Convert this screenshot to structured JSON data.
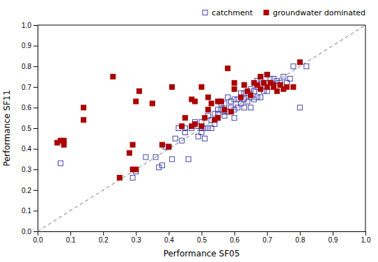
{
  "chart_data": {
    "type": "scatter",
    "xlabel": "Performance SF05",
    "ylabel": "Performance SF11",
    "xlim": [
      0.0,
      1.0
    ],
    "ylim": [
      0.0,
      1.0
    ],
    "xticks": [
      {
        "value": 0.0,
        "label": "0.0"
      },
      0.1,
      0.2,
      0.3,
      0.4,
      0.5,
      0.6,
      0.7,
      0.8,
      0.9,
      {
        "value": 1.0,
        "label": "1.0"
      }
    ],
    "yticks": [
      {
        "value": 0.0,
        "label": "0.0"
      },
      0.1,
      0.2,
      0.3,
      0.4,
      0.5,
      0.6,
      0.7,
      0.8,
      0.9,
      {
        "value": 1.0,
        "label": "1.0"
      }
    ],
    "grid": false,
    "legend": "upper right",
    "series": [
      {
        "name": "catchment",
        "type": "scatter",
        "color": "#4444aa",
        "marker": "open-square",
        "x": [
          0.07,
          0.29,
          0.3,
          0.33,
          0.36,
          0.37,
          0.38,
          0.39,
          0.4,
          0.41,
          0.42,
          0.43,
          0.44,
          0.45,
          0.45,
          0.46,
          0.47,
          0.48,
          0.49,
          0.49,
          0.5,
          0.5,
          0.5,
          0.51,
          0.51,
          0.52,
          0.52,
          0.53,
          0.53,
          0.54,
          0.54,
          0.55,
          0.55,
          0.55,
          0.56,
          0.56,
          0.57,
          0.57,
          0.57,
          0.58,
          0.58,
          0.59,
          0.59,
          0.6,
          0.6,
          0.6,
          0.61,
          0.61,
          0.62,
          0.62,
          0.63,
          0.63,
          0.63,
          0.64,
          0.64,
          0.65,
          0.65,
          0.65,
          0.66,
          0.66,
          0.67,
          0.67,
          0.67,
          0.68,
          0.68,
          0.68,
          0.69,
          0.69,
          0.7,
          0.7,
          0.7,
          0.71,
          0.71,
          0.72,
          0.72,
          0.73,
          0.74,
          0.75,
          0.76,
          0.77,
          0.78,
          0.8,
          0.82
        ],
        "values": [
          0.33,
          0.26,
          0.29,
          0.36,
          0.36,
          0.31,
          0.32,
          0.41,
          0.41,
          0.35,
          0.45,
          0.5,
          0.44,
          0.48,
          0.5,
          0.35,
          0.5,
          0.53,
          0.46,
          0.51,
          0.48,
          0.5,
          0.53,
          0.45,
          0.5,
          0.5,
          0.56,
          0.5,
          0.54,
          0.52,
          0.57,
          0.55,
          0.57,
          0.59,
          0.59,
          0.62,
          0.56,
          0.58,
          0.62,
          0.58,
          0.65,
          0.6,
          0.63,
          0.55,
          0.59,
          0.64,
          0.6,
          0.64,
          0.62,
          0.67,
          0.6,
          0.64,
          0.67,
          0.63,
          0.67,
          0.6,
          0.65,
          0.69,
          0.64,
          0.68,
          0.65,
          0.7,
          0.73,
          0.65,
          0.7,
          0.74,
          0.68,
          0.72,
          0.68,
          0.72,
          0.76,
          0.7,
          0.74,
          0.71,
          0.74,
          0.73,
          0.72,
          0.75,
          0.72,
          0.74,
          0.8,
          0.6,
          0.8
        ]
      },
      {
        "name": "groundwater dominated",
        "type": "scatter",
        "color": "#aa0000",
        "marker": "square",
        "x": [
          0.06,
          0.07,
          0.08,
          0.08,
          0.14,
          0.14,
          0.23,
          0.25,
          0.28,
          0.29,
          0.29,
          0.3,
          0.3,
          0.31,
          0.35,
          0.38,
          0.4,
          0.41,
          0.44,
          0.45,
          0.47,
          0.47,
          0.48,
          0.48,
          0.5,
          0.5,
          0.51,
          0.52,
          0.52,
          0.53,
          0.54,
          0.55,
          0.55,
          0.56,
          0.57,
          0.58,
          0.59,
          0.6,
          0.6,
          0.62,
          0.63,
          0.64,
          0.65,
          0.66,
          0.67,
          0.68,
          0.68,
          0.69,
          0.7,
          0.7,
          0.71,
          0.72,
          0.72,
          0.73,
          0.74,
          0.75,
          0.76,
          0.78,
          0.8
        ],
        "values": [
          0.43,
          0.44,
          0.42,
          0.44,
          0.54,
          0.6,
          0.75,
          0.26,
          0.38,
          0.3,
          0.42,
          0.3,
          0.63,
          0.68,
          0.62,
          0.42,
          0.41,
          0.7,
          0.51,
          0.55,
          0.51,
          0.64,
          0.52,
          0.63,
          0.51,
          0.7,
          0.55,
          0.59,
          0.65,
          0.62,
          0.54,
          0.55,
          0.63,
          0.63,
          0.59,
          0.79,
          0.58,
          0.69,
          0.72,
          0.65,
          0.71,
          0.68,
          0.66,
          0.72,
          0.71,
          0.69,
          0.75,
          0.72,
          0.7,
          0.76,
          0.72,
          0.7,
          0.71,
          0.68,
          0.71,
          0.69,
          0.7,
          0.7,
          0.82
        ]
      },
      {
        "type": "line",
        "color": "#999999",
        "line_style": "dashed",
        "x": [
          0.0,
          1.0
        ],
        "values": [
          0.0,
          1.0
        ]
      }
    ]
  }
}
